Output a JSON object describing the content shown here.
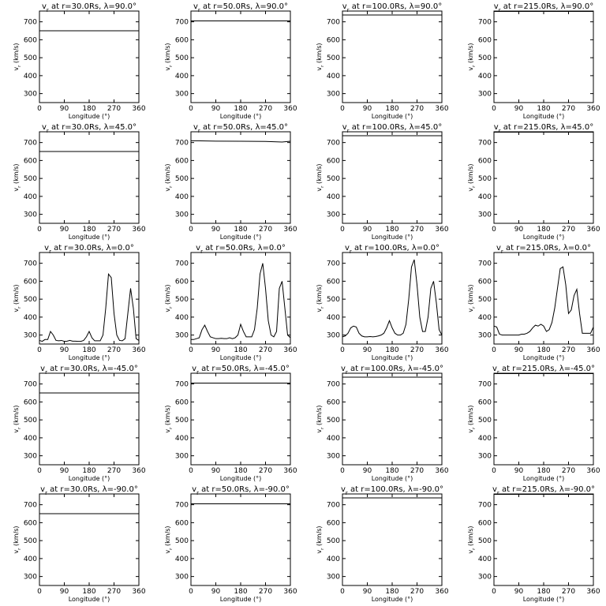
{
  "chart_data": {
    "type": "line",
    "grid": false,
    "xlabel": "Longitude (°)",
    "ylabel": "v_r (km/s)",
    "xlim": [
      0,
      360
    ],
    "ylim": [
      250,
      760
    ],
    "xticks": [
      0,
      90,
      180,
      270,
      360
    ],
    "yticks": [
      300,
      400,
      500,
      600,
      700
    ],
    "panels": [
      {
        "title": "v_r at r=30.0Rs, λ=90.0°",
        "r": "30.0Rs",
        "lat": "90.0°",
        "x": [
          0,
          360
        ],
        "y": [
          650,
          650
        ]
      },
      {
        "title": "v_r at r=50.0Rs, λ=90.0°",
        "r": "50.0Rs",
        "lat": "90.0°",
        "x": [
          0,
          360
        ],
        "y": [
          705,
          705
        ]
      },
      {
        "title": "v_r at r=100.0Rs, λ=90.0°",
        "r": "100.0Rs",
        "lat": "90.0°",
        "x": [
          0,
          360
        ],
        "y": [
          738,
          738
        ]
      },
      {
        "title": "v_r at r=215.0Rs, λ=90.0°",
        "r": "215.0Rs",
        "lat": "90.0°",
        "x": [
          0,
          360
        ],
        "y": [
          758,
          758
        ]
      },
      {
        "title": "v_r at r=30.0Rs, λ=45.0°",
        "r": "30.0Rs",
        "lat": "45.0°",
        "x": [
          0,
          360
        ],
        "y": [
          650,
          650
        ]
      },
      {
        "title": "v_r at r=50.0Rs, λ=45.0°",
        "r": "50.0Rs",
        "lat": "45.0°",
        "x": [
          0,
          90,
          180,
          270,
          330,
          360
        ],
        "y": [
          710,
          708,
          707,
          706,
          703,
          707
        ]
      },
      {
        "title": "v_r at r=100.0Rs, λ=45.0°",
        "r": "100.0Rs",
        "lat": "45.0°",
        "x": [
          0,
          360
        ],
        "y": [
          738,
          738
        ]
      },
      {
        "title": "v_r at r=215.0Rs, λ=45.0°",
        "r": "215.0Rs",
        "lat": "45.0°",
        "x": [
          0,
          360
        ],
        "y": [
          758,
          758
        ]
      },
      {
        "title": "v_r at r=30.0Rs, λ=0.0°",
        "r": "30.0Rs",
        "lat": "0.0°",
        "x": [
          0,
          10,
          20,
          30,
          40,
          50,
          60,
          70,
          80,
          90,
          100,
          110,
          120,
          130,
          140,
          150,
          160,
          170,
          180,
          190,
          200,
          210,
          220,
          230,
          240,
          250,
          260,
          270,
          280,
          290,
          300,
          310,
          320,
          330,
          340,
          350,
          360
        ],
        "y": [
          270,
          265,
          275,
          275,
          320,
          300,
          270,
          268,
          270,
          265,
          266,
          270,
          266,
          266,
          265,
          265,
          270,
          290,
          320,
          285,
          268,
          268,
          268,
          300,
          450,
          640,
          620,
          420,
          300,
          270,
          268,
          280,
          420,
          560,
          450,
          280,
          270
        ]
      },
      {
        "title": "v_r at r=50.0Rs, λ=0.0°",
        "r": "50.0Rs",
        "lat": "0.0°",
        "x": [
          0,
          10,
          20,
          30,
          40,
          50,
          60,
          70,
          80,
          90,
          100,
          110,
          120,
          130,
          140,
          150,
          160,
          170,
          180,
          190,
          200,
          210,
          220,
          230,
          240,
          250,
          260,
          270,
          280,
          290,
          300,
          310,
          320,
          330,
          340,
          350,
          360
        ],
        "y": [
          275,
          275,
          280,
          285,
          330,
          355,
          320,
          290,
          285,
          280,
          280,
          282,
          280,
          280,
          285,
          280,
          285,
          300,
          360,
          320,
          290,
          290,
          290,
          330,
          450,
          640,
          700,
          560,
          380,
          300,
          290,
          320,
          560,
          600,
          450,
          300,
          285
        ]
      },
      {
        "title": "v_r at r=100.0Rs, λ=0.0°",
        "r": "100.0Rs",
        "lat": "0.0°",
        "x": [
          0,
          10,
          20,
          30,
          40,
          50,
          60,
          70,
          80,
          90,
          100,
          110,
          120,
          130,
          140,
          150,
          160,
          170,
          180,
          190,
          200,
          210,
          220,
          230,
          240,
          250,
          260,
          270,
          280,
          290,
          300,
          310,
          320,
          330,
          340,
          350,
          360
        ],
        "y": [
          290,
          295,
          310,
          340,
          350,
          345,
          310,
          295,
          290,
          290,
          292,
          290,
          292,
          295,
          300,
          310,
          340,
          380,
          340,
          310,
          300,
          300,
          310,
          360,
          500,
          680,
          720,
          580,
          400,
          320,
          320,
          400,
          560,
          600,
          480,
          330,
          300
        ]
      },
      {
        "title": "v_r at r=215.0Rs, λ=0.0°",
        "r": "215.0Rs",
        "lat": "0.0°",
        "x": [
          0,
          10,
          20,
          30,
          40,
          50,
          60,
          70,
          80,
          90,
          100,
          110,
          120,
          130,
          140,
          150,
          160,
          170,
          180,
          190,
          200,
          210,
          220,
          230,
          240,
          250,
          260,
          270,
          280,
          290,
          300,
          310,
          320,
          330,
          340,
          350,
          360
        ],
        "y": [
          350,
          345,
          305,
          300,
          300,
          300,
          300,
          300,
          300,
          300,
          305,
          305,
          310,
          320,
          340,
          355,
          350,
          360,
          350,
          320,
          330,
          370,
          450,
          560,
          670,
          680,
          580,
          420,
          440,
          520,
          555,
          420,
          310,
          310,
          310,
          310,
          345
        ]
      },
      {
        "title": "v_r at r=30.0Rs, λ=-45.0°",
        "r": "30.0Rs",
        "lat": "-45.0°",
        "x": [
          0,
          360
        ],
        "y": [
          650,
          650
        ]
      },
      {
        "title": "v_r at r=50.0Rs, λ=-45.0°",
        "r": "50.0Rs",
        "lat": "-45.0°",
        "x": [
          0,
          360
        ],
        "y": [
          705,
          705
        ]
      },
      {
        "title": "v_r at r=100.0Rs, λ=-45.0°",
        "r": "100.0Rs",
        "lat": "-45.0°",
        "x": [
          0,
          360
        ],
        "y": [
          738,
          738
        ]
      },
      {
        "title": "v_r at r=215.0Rs, λ=-45.0°",
        "r": "215.0Rs",
        "lat": "-45.0°",
        "x": [
          0,
          360
        ],
        "y": [
          758,
          758
        ]
      },
      {
        "title": "v_r at r=30.0Rs, λ=-90.0°",
        "r": "30.0Rs",
        "lat": "-90.0°",
        "x": [
          0,
          360
        ],
        "y": [
          650,
          650
        ]
      },
      {
        "title": "v_r at r=50.0Rs, λ=-90.0°",
        "r": "50.0Rs",
        "lat": "-90.0°",
        "x": [
          0,
          360
        ],
        "y": [
          705,
          705
        ]
      },
      {
        "title": "v_r at r=100.0Rs, λ=-90.0°",
        "r": "100.0Rs",
        "lat": "-90.0°",
        "x": [
          0,
          360
        ],
        "y": [
          738,
          738
        ]
      },
      {
        "title": "v_r at r=215.0Rs, λ=-90.0°",
        "r": "215.0Rs",
        "lat": "-90.0°",
        "x": [
          0,
          360
        ],
        "y": [
          758,
          758
        ]
      }
    ]
  }
}
